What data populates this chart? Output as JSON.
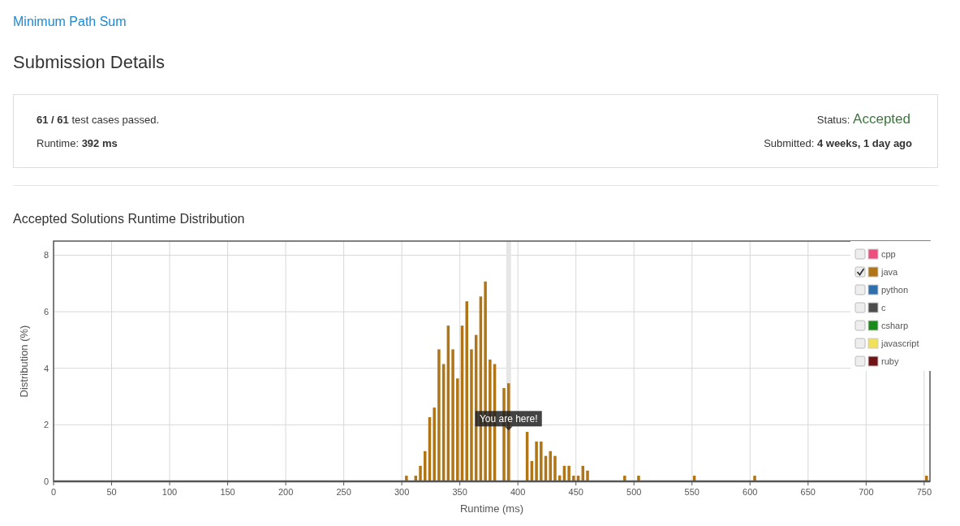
{
  "chart_data": {
    "type": "bar",
    "title": "Accepted Solutions Runtime Distribution",
    "xlabel": "Runtime (ms)",
    "ylabel": "Distribution (%)",
    "annotations": [
      "Minimum Path Sum",
      "Submission Details",
      "61 / 61 test cases passed.",
      "Runtime: 392 ms",
      "Status: Accepted",
      "Submitted: 4 weeks, 1 day ago",
      {
        "text": "You are here!",
        "x": 392,
        "y": 1.8
      }
    ],
    "series": [
      {
        "name": "cpp",
        "color": "#ec4f7f"
      },
      {
        "name": "java",
        "color": "#b07516",
        "x": [
          304,
          312,
          316,
          320,
          324,
          328,
          332,
          336,
          340,
          344,
          348,
          352,
          356,
          360,
          364,
          368,
          372,
          376,
          380,
          384,
          388,
          392,
          396,
          400,
          404,
          408,
          412,
          416,
          420,
          424,
          428,
          432,
          436,
          440,
          444,
          448,
          452,
          456,
          460,
          492,
          504,
          552,
          604,
          752
        ],
        "values": [
          0.2,
          0.2,
          0.55,
          1.07,
          2.27,
          2.61,
          4.67,
          4.15,
          5.51,
          4.67,
          3.64,
          5.51,
          6.37,
          4.67,
          5.18,
          6.54,
          7.07,
          4.31,
          4.15,
          null,
          3.3,
          3.47,
          null,
          null,
          null,
          1.75,
          0.72,
          1.41,
          1.41,
          0.9,
          1.07,
          0.9,
          0.21,
          0.55,
          0.55,
          0.2,
          0.2,
          0.55,
          0.38,
          0.2,
          0.2,
          0.2,
          0.2,
          0.2
        ]
      },
      {
        "name": "python",
        "color": "#2f6fad"
      },
      {
        "name": "c",
        "color": "#4d4d4d"
      },
      {
        "name": "csharp",
        "color": "#1a8a1a"
      },
      {
        "name": "javascript",
        "color": "#f1e05a"
      },
      {
        "name": "ruby",
        "color": "#701516"
      }
    ],
    "xlim": [
      0,
      755
    ],
    "xticks": [
      0,
      50,
      100,
      150,
      200,
      250,
      300,
      350,
      400,
      450,
      500,
      550,
      600,
      650,
      700,
      750
    ],
    "ylim": [
      0,
      8.5
    ],
    "yticks": [
      0,
      2,
      4,
      6,
      8
    ],
    "ref_lines": [
      {
        "axis": "x",
        "value": 392,
        "color": "#e6e6e6"
      }
    ],
    "grid": true,
    "legend": "top right"
  }
}
